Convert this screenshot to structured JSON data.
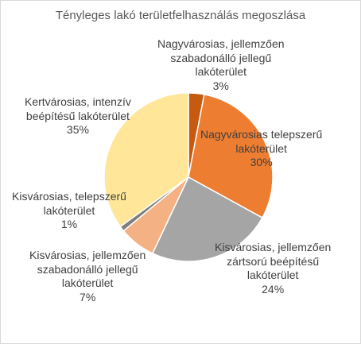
{
  "chart_data": {
    "type": "pie",
    "title": "Tényleges lakó területfelhasználás megoszlása",
    "slices": [
      {
        "label": [
          "Nagyvárosias, jellemzően",
          "szabadonálló jellegű",
          "lakóterület"
        ],
        "value": 3,
        "pct_label": "3%",
        "color": "#c55a11"
      },
      {
        "label": [
          "Nagyvárosias telepszerű",
          "lakóterület"
        ],
        "value": 30,
        "pct_label": "30%",
        "color": "#ed7d31"
      },
      {
        "label": [
          "Kisvárosias, jellemzően",
          "zártsorú beépítésű",
          "lakóterület"
        ],
        "value": 24,
        "pct_label": "24%",
        "color": "#a5a5a5"
      },
      {
        "label": [
          "Kisvárosias, jellemzően",
          "szabadonálló jellegű",
          "lakóterület"
        ],
        "value": 7,
        "pct_label": "7%",
        "color": "#f4b183"
      },
      {
        "label": [
          "Kisvárosias, telepszerű",
          "lakóterület"
        ],
        "value": 1,
        "pct_label": "1%",
        "color": "#7f7f7f"
      },
      {
        "label": [
          "Kertvárosias, intenzív",
          "beépítésű lakóterület"
        ],
        "value": 35,
        "pct_label": "35%",
        "color": "#ffe699"
      }
    ],
    "legend": "none",
    "start_angle": "12 o'clock, clockwise"
  }
}
